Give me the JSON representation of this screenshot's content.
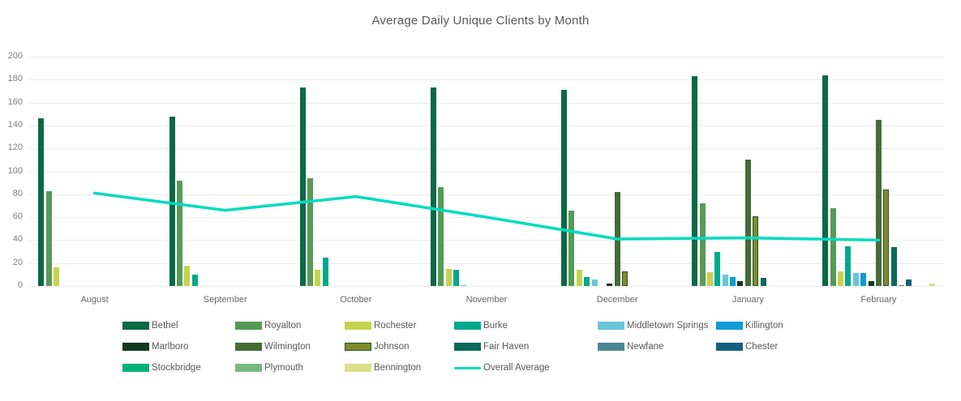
{
  "title": "Average Daily Unique Clients by Month",
  "chart_data": {
    "type": "bar",
    "title": "Average Daily Unique Clients by Month",
    "categories": [
      "August",
      "September",
      "October",
      "November",
      "December",
      "January",
      "February"
    ],
    "series": [
      {
        "name": "Bethel",
        "color": "#0a6945",
        "values": [
          146,
          148,
          173,
          173,
          171,
          183,
          184
        ]
      },
      {
        "name": "Royalton",
        "color": "#569a58",
        "values": [
          83,
          92,
          94,
          86,
          66,
          72,
          68
        ]
      },
      {
        "name": "Rochester",
        "color": "#c4d44e",
        "values": [
          16,
          18,
          14,
          15,
          14,
          12,
          13
        ]
      },
      {
        "name": "Burke",
        "color": "#00a98c",
        "values": [
          0,
          10,
          25,
          14,
          8,
          30,
          35
        ]
      },
      {
        "name": "Middletown Springs",
        "color": "#68c6d9",
        "values": [
          0,
          0,
          0,
          1,
          6,
          10,
          11
        ]
      },
      {
        "name": "Killington",
        "color": "#0f9bd4",
        "values": [
          0,
          0,
          0,
          0,
          0,
          8,
          11
        ]
      },
      {
        "name": "Marlboro",
        "color": "#12381f",
        "values": [
          0,
          0,
          0,
          0,
          2,
          4,
          4
        ]
      },
      {
        "name": "Wilmington",
        "color": "#456b37",
        "values": [
          0,
          0,
          0,
          0,
          82,
          110,
          145
        ]
      },
      {
        "name": "Johnson",
        "color": "#7f8b2e",
        "border": "#27542c",
        "values": [
          0,
          0,
          0,
          0,
          13,
          61,
          84
        ]
      },
      {
        "name": "Fair Haven",
        "color": "#076a57",
        "values": [
          0,
          0,
          0,
          0,
          0,
          7,
          34
        ]
      },
      {
        "name": "Newfane",
        "color": "#4e8593",
        "values": [
          0,
          0,
          0,
          0,
          0,
          0,
          1
        ]
      },
      {
        "name": "Chester",
        "color": "#14607c",
        "values": [
          0,
          0,
          0,
          0,
          0,
          0,
          6
        ]
      },
      {
        "name": "Stockbridge",
        "color": "#00b374",
        "values": [
          0,
          0,
          0,
          0,
          0,
          0,
          0
        ]
      },
      {
        "name": "Plymouth",
        "color": "#79b97e",
        "values": [
          0,
          0,
          0,
          0,
          0,
          0,
          0
        ]
      },
      {
        "name": "Bennington",
        "color": "#d8e08b",
        "values": [
          0,
          0,
          0,
          0,
          0,
          0,
          2
        ]
      }
    ],
    "line_series": {
      "name": "Overall Average",
      "color": "#00dcbe",
      "values": [
        81,
        66,
        78,
        60,
        41,
        42,
        40
      ]
    },
    "ylim": [
      0,
      200
    ],
    "y_ticks": [
      0,
      20,
      40,
      60,
      80,
      100,
      120,
      140,
      160,
      180,
      200
    ],
    "grid": true,
    "legend_position": "bottom"
  }
}
